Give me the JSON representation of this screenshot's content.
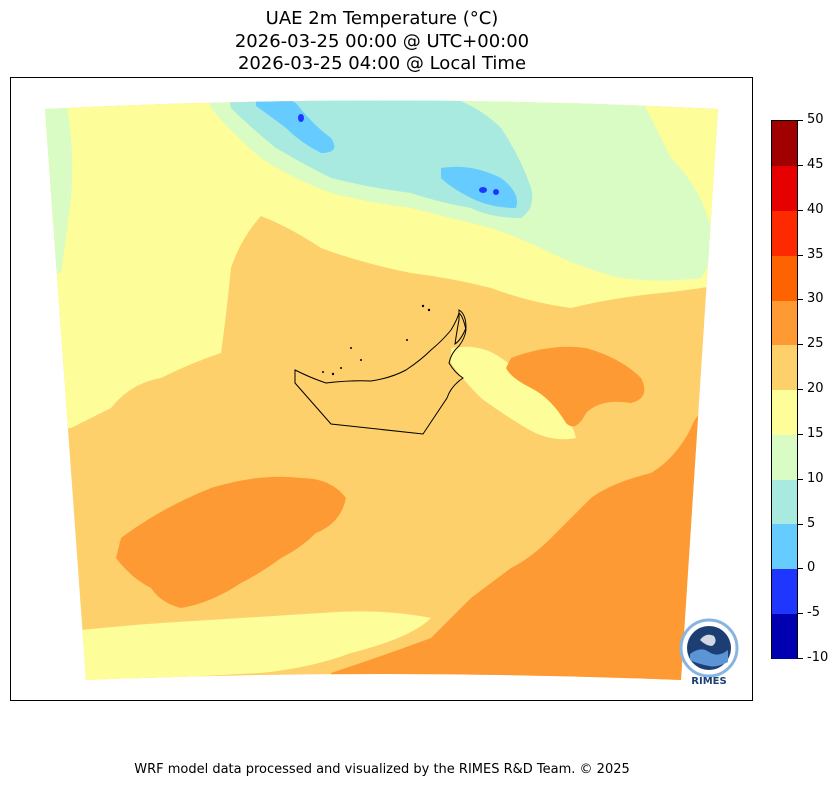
{
  "title": {
    "line1": "UAE 2m Temperature (°C)",
    "line2": "2026-03-25 00:00 @ UTC+00:00",
    "line3": "2026-03-25 04:00 @ Local Time"
  },
  "colorbar": {
    "levels": [
      "-10",
      "-5",
      "0",
      "5",
      "10",
      "15",
      "20",
      "25",
      "30",
      "35",
      "40",
      "45",
      "50"
    ],
    "colors": [
      "#0000b0",
      "#1f36ff",
      "#66ccff",
      "#a8eadf",
      "#d9fcc4",
      "#fdfd99",
      "#fdd06b",
      "#fd9a33",
      "#fd6300",
      "#fd2a00",
      "#e60000",
      "#a00000"
    ]
  },
  "map_colors": {
    "range_15_20": "#fdfd99",
    "range_10_15": "#d9fcc4",
    "range_5_10": "#a8eadf",
    "range_0_5": "#66ccff",
    "range_m5_0": "#1f36ff",
    "range_20_25": "#fdd06b",
    "range_25_30": "#fd9a33"
  },
  "logo": {
    "text": "RIMES"
  },
  "footer": "WRF model data processed and visualized by the RIMES R&D Team. © 2025"
}
